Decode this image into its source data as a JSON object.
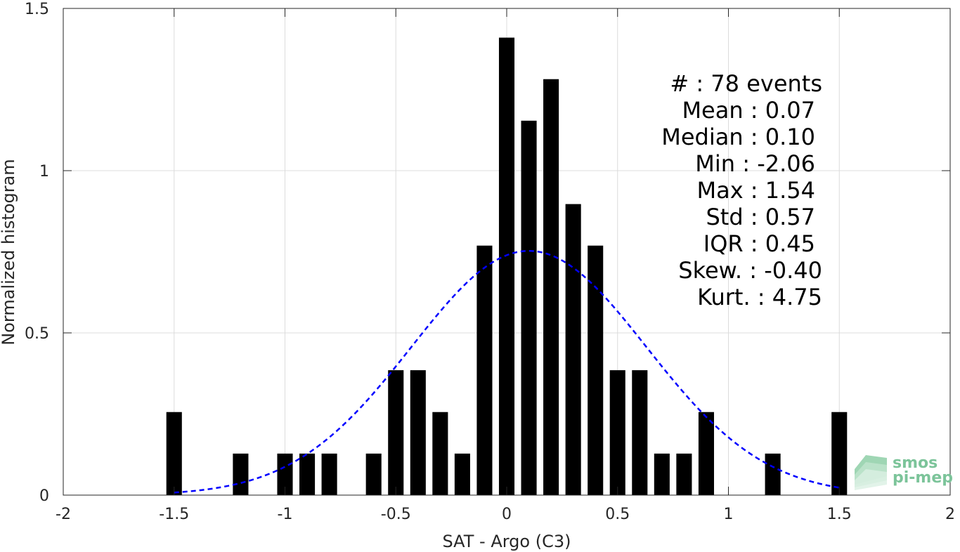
{
  "chart_data": {
    "type": "bar",
    "xlabel": "SAT - Argo (C3)",
    "ylabel": "Normalized histogram",
    "xlim": [
      -2,
      2
    ],
    "ylim": [
      0,
      1.5
    ],
    "xticks": [
      "-2",
      "-1.5",
      "-1",
      "-0.5",
      "0",
      "0.5",
      "1",
      "1.5",
      "2"
    ],
    "yticks": [
      "0",
      "0.5",
      "1",
      "1.5"
    ],
    "grid": true,
    "bar_width": 0.07,
    "bars": [
      {
        "x": -1.5,
        "value": 0.256
      },
      {
        "x": -1.2,
        "value": 0.128
      },
      {
        "x": -1.0,
        "value": 0.128
      },
      {
        "x": -0.9,
        "value": 0.128
      },
      {
        "x": -0.8,
        "value": 0.128
      },
      {
        "x": -0.6,
        "value": 0.128
      },
      {
        "x": -0.5,
        "value": 0.385
      },
      {
        "x": -0.4,
        "value": 0.385
      },
      {
        "x": -0.3,
        "value": 0.256
      },
      {
        "x": -0.2,
        "value": 0.128
      },
      {
        "x": -0.1,
        "value": 0.769
      },
      {
        "x": 0.0,
        "value": 1.41
      },
      {
        "x": 0.1,
        "value": 1.154
      },
      {
        "x": 0.2,
        "value": 1.282
      },
      {
        "x": 0.3,
        "value": 0.897
      },
      {
        "x": 0.4,
        "value": 0.769
      },
      {
        "x": 0.5,
        "value": 0.385
      },
      {
        "x": 0.6,
        "value": 0.385
      },
      {
        "x": 0.7,
        "value": 0.128
      },
      {
        "x": 0.8,
        "value": 0.128
      },
      {
        "x": 0.9,
        "value": 0.256
      },
      {
        "x": 1.2,
        "value": 0.128
      },
      {
        "x": 1.5,
        "value": 0.256
      }
    ],
    "fit_curve": {
      "type": "gaussian",
      "mean": 0.1,
      "std": 0.53,
      "x_range": [
        -1.5,
        1.5
      ],
      "color": "#0000ff",
      "style": "dashed"
    },
    "bar_color": "#000000",
    "annotation_lines": [
      "#  : 78 events",
      "Mean : 0.07",
      "Median : 0.10",
      "Min : -2.06",
      "Max : 1.54",
      "Std : 0.57",
      "IQR : 0.45",
      "Skew. : -0.40",
      "Kurt. : 4.75"
    ]
  },
  "logo": {
    "line1": "smos",
    "line2": "pi-mep",
    "color": "#7cc49a"
  }
}
